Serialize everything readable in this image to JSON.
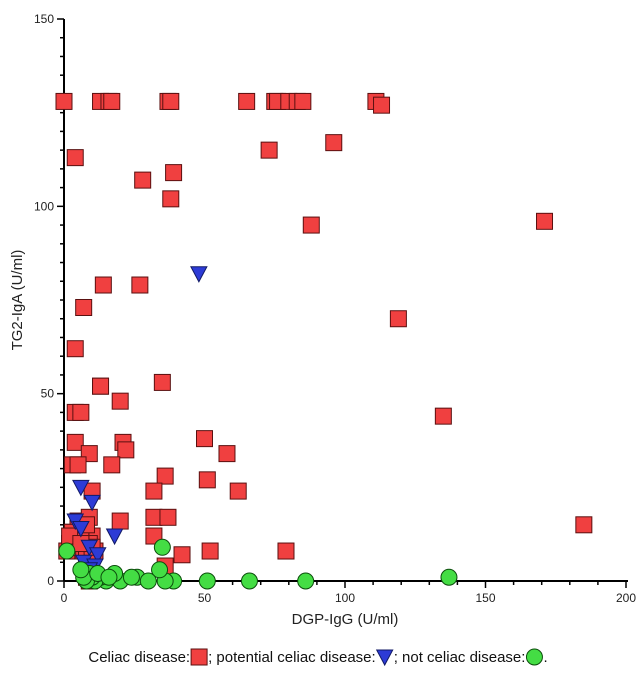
{
  "chart_data": {
    "type": "scatter",
    "xlabel": "DGP-IgG (U/ml)",
    "ylabel": "TG2-IgA (U/ml)",
    "xlim": [
      0,
      200
    ],
    "ylim": [
      0,
      150
    ],
    "x_ticks": [
      0,
      50,
      100,
      150,
      200
    ],
    "y_ticks": [
      0,
      50,
      100,
      150
    ],
    "grid": false,
    "legend": {
      "position": "bottom",
      "segments": [
        "Celiac disease:",
        "; potential celiac disease:",
        "; not celiac disease:",
        "."
      ]
    },
    "series": [
      {
        "name": "Celiac disease",
        "marker": "square",
        "color": "#f04040",
        "points": [
          [
            0,
            128
          ],
          [
            13,
            128
          ],
          [
            16,
            128
          ],
          [
            17,
            128
          ],
          [
            37,
            128
          ],
          [
            38,
            128
          ],
          [
            65,
            128
          ],
          [
            75,
            128
          ],
          [
            76,
            128
          ],
          [
            80,
            128
          ],
          [
            83,
            128
          ],
          [
            85,
            128
          ],
          [
            111,
            128
          ],
          [
            113,
            127
          ],
          [
            96,
            117
          ],
          [
            73,
            115
          ],
          [
            4,
            113
          ],
          [
            39,
            109
          ],
          [
            28,
            107
          ],
          [
            38,
            102
          ],
          [
            171,
            96
          ],
          [
            88,
            95
          ],
          [
            14,
            79
          ],
          [
            27,
            79
          ],
          [
            7,
            73
          ],
          [
            119,
            70
          ],
          [
            4,
            62
          ],
          [
            35,
            53
          ],
          [
            13,
            52
          ],
          [
            13,
            52
          ],
          [
            20,
            48
          ],
          [
            4,
            45
          ],
          [
            6,
            45
          ],
          [
            135,
            44
          ],
          [
            50,
            38
          ],
          [
            4,
            37
          ],
          [
            21,
            37
          ],
          [
            22,
            35
          ],
          [
            58,
            34
          ],
          [
            9,
            34
          ],
          [
            3,
            31
          ],
          [
            5,
            31
          ],
          [
            17,
            31
          ],
          [
            36,
            28
          ],
          [
            51,
            27
          ],
          [
            32,
            24
          ],
          [
            10,
            24
          ],
          [
            62,
            24
          ],
          [
            20,
            16
          ],
          [
            32,
            17
          ],
          [
            37,
            17
          ],
          [
            185,
            15
          ],
          [
            3,
            13
          ],
          [
            5,
            14
          ],
          [
            8,
            13
          ],
          [
            10,
            12
          ],
          [
            6,
            11
          ],
          [
            2,
            10
          ],
          [
            9,
            10
          ],
          [
            1,
            8
          ],
          [
            11,
            8
          ],
          [
            4,
            9
          ],
          [
            7,
            8
          ],
          [
            8,
            7
          ],
          [
            36,
            4
          ],
          [
            52,
            8
          ],
          [
            42,
            7
          ],
          [
            79,
            8
          ],
          [
            32,
            12
          ],
          [
            5,
            16
          ],
          [
            9,
            17
          ],
          [
            11,
            8
          ],
          [
            6,
            12
          ],
          [
            3,
            13
          ],
          [
            2,
            12
          ],
          [
            8,
            15
          ],
          [
            10,
            9
          ],
          [
            6,
            10
          ],
          [
            9,
            0
          ],
          [
            8,
            1
          ]
        ]
      },
      {
        "name": "potential celiac disease",
        "marker": "triangle",
        "color": "#2d3bd6",
        "points": [
          [
            48,
            82
          ],
          [
            6,
            25
          ],
          [
            10,
            21
          ],
          [
            18,
            12
          ],
          [
            4,
            16
          ],
          [
            6,
            14
          ],
          [
            9,
            9
          ],
          [
            12,
            7
          ],
          [
            7,
            5
          ],
          [
            11,
            4
          ],
          [
            9,
            3
          ],
          [
            8,
            1
          ]
        ]
      },
      {
        "name": "not celiac disease",
        "marker": "circle",
        "color": "#44dd44",
        "points": [
          [
            35,
            9
          ],
          [
            137,
            1
          ],
          [
            86,
            0
          ],
          [
            66,
            0
          ],
          [
            51,
            0
          ],
          [
            39,
            0
          ],
          [
            36,
            0
          ],
          [
            34,
            3
          ],
          [
            26,
            1
          ],
          [
            20,
            0
          ],
          [
            18,
            2
          ],
          [
            15,
            0
          ],
          [
            13,
            1
          ],
          [
            11,
            0
          ],
          [
            10,
            1
          ],
          [
            9,
            2
          ],
          [
            8,
            0
          ],
          [
            7,
            1
          ],
          [
            6,
            3
          ],
          [
            12,
            2
          ],
          [
            16,
            1
          ],
          [
            30,
            0
          ],
          [
            24,
            1
          ],
          [
            1,
            8
          ]
        ]
      }
    ]
  }
}
